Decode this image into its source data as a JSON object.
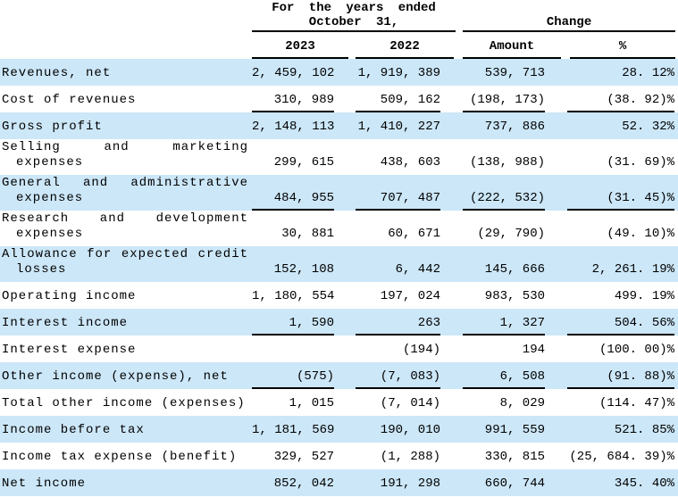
{
  "colors": {
    "stripe_blue": "#cce7f8",
    "rule_black": "#000000",
    "text": "#000000"
  },
  "header": {
    "years_group_line1": "For the years ended",
    "years_group_line2": "October 31,",
    "change_group": "Change",
    "col_2023": "2023",
    "col_2022": "2022",
    "col_amount": "Amount",
    "col_percent": "%"
  },
  "rows": [
    {
      "l1": "Revenues, net",
      "c1": "2, 459, 102",
      "c2": "1, 919, 389",
      "c3": "539, 713",
      "c4": "28. 12%"
    },
    {
      "l1": "Cost of revenues",
      "c1": "310, 989",
      "c2": "509, 162",
      "c3": "(198, 173)",
      "c4": "(38. 92)%"
    },
    {
      "l1": "Gross profit",
      "c1": "2, 148, 113",
      "c2": "1, 410, 227",
      "c3": "737, 886",
      "c4": "52. 32%"
    },
    {
      "l1": "Selling and marketing",
      "l2": "expenses",
      "c1": "299, 615",
      "c2": "438, 603",
      "c3": "(138, 988)",
      "c4": "(31. 69)%"
    },
    {
      "l1": "General and administrative",
      "l2": "expenses",
      "c1": "484, 955",
      "c2": "707, 487",
      "c3": "(222, 532)",
      "c4": "(31. 45)%"
    },
    {
      "l1": "Research and development",
      "l2": "expenses",
      "c1": "30, 881",
      "c2": "60, 671",
      "c3": "(29, 790)",
      "c4": "(49. 10)%"
    },
    {
      "l1": "Allowance for expected credit",
      "l2": "losses",
      "c1": "152, 108",
      "c2": "6, 442",
      "c3": "145, 666",
      "c4": "2, 261. 19%"
    },
    {
      "l1": "Operating income",
      "c1": "1, 180, 554",
      "c2": "197, 024",
      "c3": "983, 530",
      "c4": "499. 19%"
    },
    {
      "l1": "Interest income",
      "c1": "1, 590",
      "c2": "263",
      "c3": "1, 327",
      "c4": "504. 56%"
    },
    {
      "l1": "Interest expense",
      "c1": "",
      "c2": "(194)",
      "c3": "194",
      "c4": "(100. 00)%"
    },
    {
      "l1": "Other income (expense), net",
      "c1": "(575)",
      "c2": "(7, 083)",
      "c3": "6, 508",
      "c4": "(91. 88)%"
    },
    {
      "l1": "Total other income (expenses)",
      "c1": "1, 015",
      "c2": "(7, 014)",
      "c3": "8, 029",
      "c4": "(114. 47)%"
    },
    {
      "l1": "Income before tax",
      "c1": "1, 181, 569",
      "c2": "190, 010",
      "c3": "991, 559",
      "c4": "521. 85%"
    },
    {
      "l1": "Income tax expense (benefit)",
      "c1": "329, 527",
      "c2": "(1, 288)",
      "c3": "330, 815",
      "c4": "(25, 684. 39)%"
    },
    {
      "l1": "Net income",
      "c1": "852, 042",
      "c2": "191, 298",
      "c3": "660, 744",
      "c4": "345. 40%"
    }
  ]
}
